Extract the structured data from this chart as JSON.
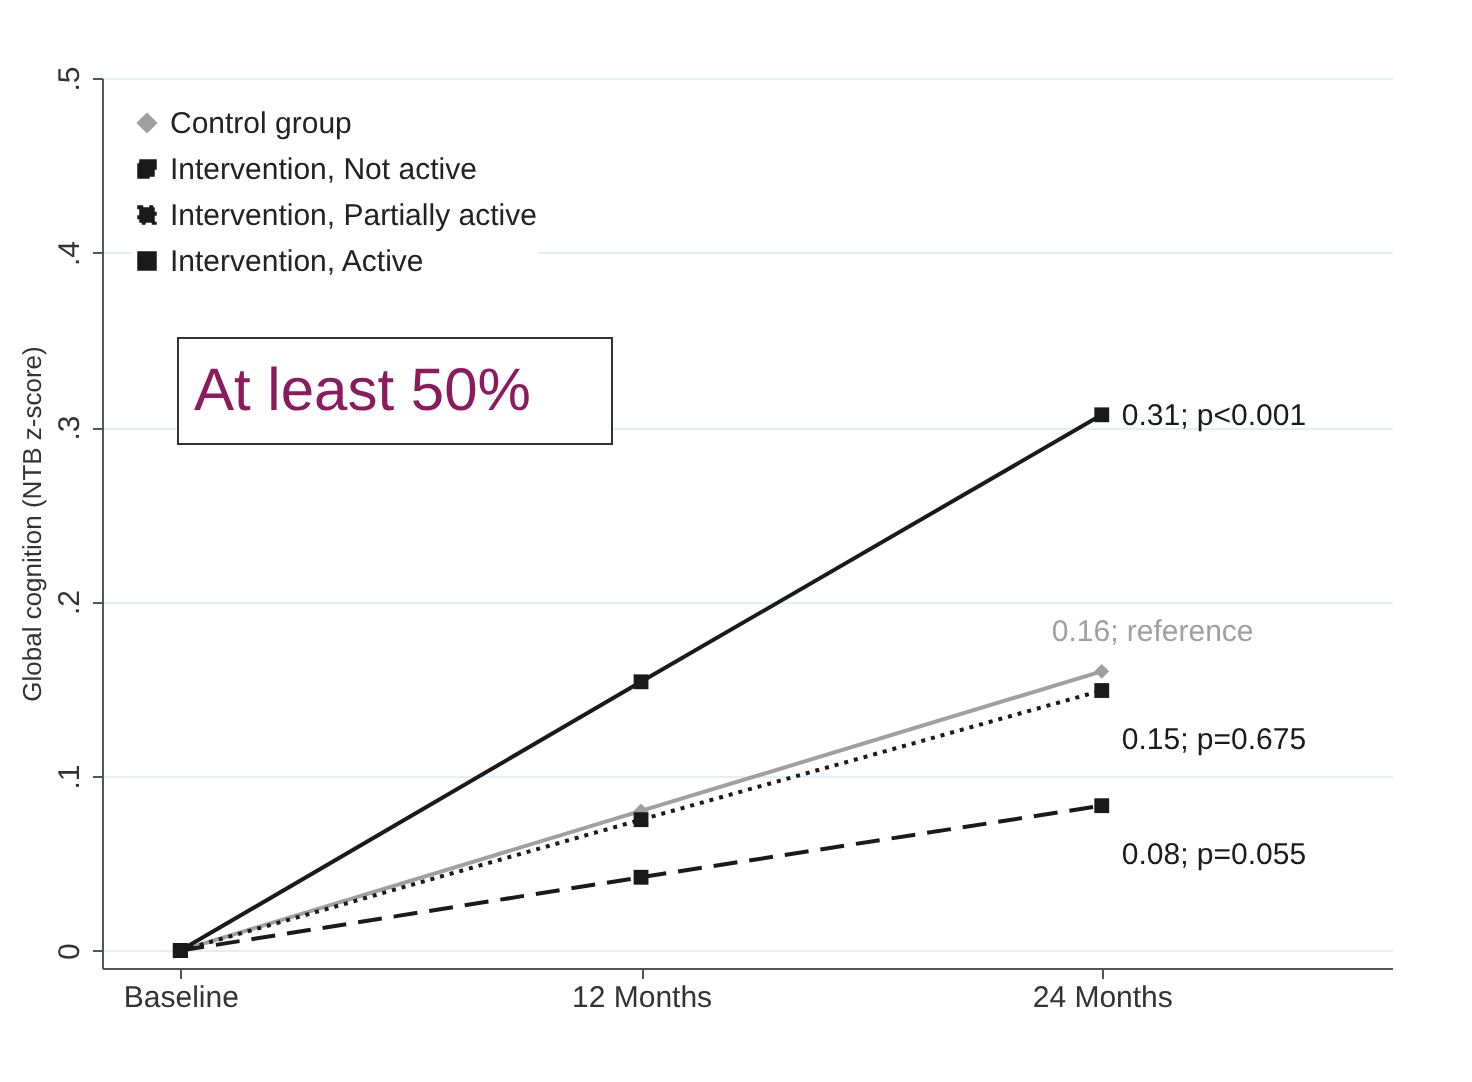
{
  "chart_data": {
    "type": "line",
    "ylabel": "Global cognition (NTB z-score)",
    "categories": [
      "Baseline",
      "12 Months",
      "24 Months"
    ],
    "series": [
      {
        "name": "Control group",
        "color": "#a0a0a0",
        "values": [
          0,
          0.08,
          0.16
        ],
        "marker": "diamond",
        "line_style": "solid"
      },
      {
        "name": "Intervention, Not active",
        "color": "#1a1a1a",
        "values": [
          0,
          0.042,
          0.083
        ],
        "marker": "square",
        "line_style": "dashed"
      },
      {
        "name": "Intervention, Partially active",
        "color": "#1a1a1a",
        "values": [
          0,
          0.075,
          0.149
        ],
        "marker": "square",
        "line_style": "dotted"
      },
      {
        "name": "Intervention, Active",
        "color": "#1a1a1a",
        "values": [
          0,
          0.154,
          0.307
        ],
        "marker": "square",
        "line_style": "solid"
      }
    ],
    "ylim": [
      -0.01,
      0.5
    ],
    "yticks": [
      0,
      {
        "value": 0.1,
        "label": ".1"
      },
      {
        "value": 0.2,
        "label": ".2"
      },
      {
        "value": 0.3,
        "label": ".3"
      },
      {
        "value": 0.4,
        "label": ".4"
      },
      {
        "value": 0.5,
        "label": ".5"
      }
    ],
    "grid": "y",
    "legend": "top left",
    "annotations": [
      {
        "text": "0.31; p<0.001",
        "x": "24 Months",
        "y": 0.307
      },
      {
        "text": "0.16; reference",
        "x": "24 Months",
        "y": 0.16
      },
      {
        "text": "0.15; p=0.675",
        "x": "24 Months",
        "y": 0.149
      },
      {
        "text": "0.08; p=0.055",
        "x": "24 Months",
        "y": 0.083
      },
      "At least 50%"
    ]
  }
}
